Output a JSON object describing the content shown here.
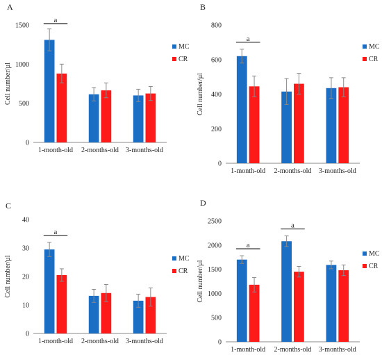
{
  "chart_data": [
    {
      "type": "bar",
      "panel": "A",
      "categories": [
        "1-month-old",
        "2-months-old",
        "3-months-old"
      ],
      "series": [
        {
          "name": "MC",
          "values": [
            1310,
            615,
            600
          ],
          "errors": [
            140,
            85,
            80
          ]
        },
        {
          "name": "CR",
          "values": [
            880,
            665,
            625
          ],
          "errors": [
            120,
            95,
            90
          ]
        }
      ],
      "ylabel": "Cell number/µl",
      "ylim": [
        0,
        1500
      ],
      "yticks": [
        0,
        500,
        1000,
        1500
      ],
      "significance": [
        {
          "category": "1-month-old",
          "label": "a"
        }
      ],
      "legend": "right"
    },
    {
      "type": "bar",
      "panel": "B",
      "categories": [
        "1-month-old",
        "2-months-old",
        "3-months-old"
      ],
      "series": [
        {
          "name": "MC",
          "values": [
            620,
            415,
            435
          ],
          "errors": [
            40,
            75,
            60
          ]
        },
        {
          "name": "CR",
          "values": [
            445,
            460,
            440
          ],
          "errors": [
            60,
            60,
            55
          ]
        }
      ],
      "ylabel": "Cell number/µl",
      "ylim": [
        0,
        800
      ],
      "yticks": [
        0,
        200,
        400,
        600,
        800
      ],
      "significance": [
        {
          "category": "1-month-old",
          "label": "a"
        }
      ],
      "legend": "right"
    },
    {
      "type": "bar",
      "panel": "C",
      "categories": [
        "1-month-old",
        "2-months-old",
        "3-months-old"
      ],
      "series": [
        {
          "name": "MC",
          "values": [
            29.5,
            13.2,
            11.5
          ],
          "errors": [
            2.5,
            2.3,
            2.3
          ]
        },
        {
          "name": "CR",
          "values": [
            20.5,
            14.2,
            12.8
          ],
          "errors": [
            2.2,
            3.0,
            3.2
          ]
        }
      ],
      "ylabel": "Cell number/µl",
      "ylim": [
        0,
        40
      ],
      "yticks": [
        0,
        10,
        20,
        30,
        40
      ],
      "significance": [
        {
          "category": "1-month-old",
          "label": "a"
        }
      ],
      "legend": "right"
    },
    {
      "type": "bar",
      "panel": "D",
      "categories": [
        "1-month-old",
        "2-months-old",
        "3-months-old"
      ],
      "series": [
        {
          "name": "MC",
          "values": [
            1700,
            2080,
            1590
          ],
          "errors": [
            80,
            110,
            80
          ]
        },
        {
          "name": "CR",
          "values": [
            1180,
            1450,
            1480
          ],
          "errors": [
            150,
            110,
            110
          ]
        }
      ],
      "ylabel": "Cell number/µl",
      "ylim": [
        0,
        2500
      ],
      "yticks": [
        0,
        500,
        1000,
        1500,
        2000,
        2500
      ],
      "significance": [
        {
          "category": "1-month-old",
          "label": "a"
        },
        {
          "category": "2-months-old",
          "label": "a"
        }
      ],
      "legend": "right"
    }
  ],
  "colors": {
    "MC": "#1a6fc4",
    "CR": "#ff1a1a",
    "axis": "#888888",
    "errorbar": "#888888"
  }
}
